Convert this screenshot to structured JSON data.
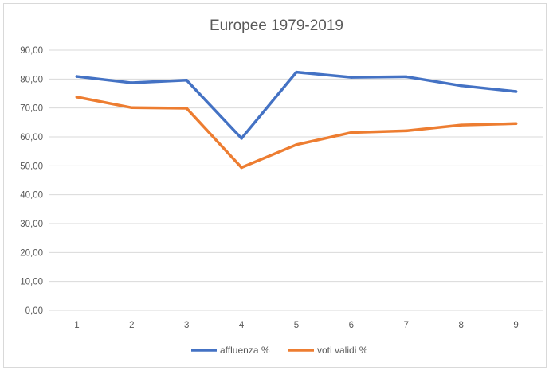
{
  "chart_data": {
    "type": "line",
    "title": "Europee 1979-2019",
    "xlabel": "",
    "ylabel": "",
    "x": [
      1,
      2,
      3,
      4,
      5,
      6,
      7,
      8,
      9
    ],
    "x_tick_labels": [
      "1",
      "2",
      "3",
      "4",
      "5",
      "6",
      "7",
      "8",
      "9"
    ],
    "ylim": [
      0,
      90
    ],
    "y_tick_values": [
      0,
      10,
      20,
      30,
      40,
      50,
      60,
      70,
      80,
      90
    ],
    "y_tick_labels": [
      "0,00",
      "10,00",
      "20,00",
      "30,00",
      "40,00",
      "50,00",
      "60,00",
      "70,00",
      "80,00",
      "90,00"
    ],
    "grid": true,
    "legend_position": "bottom",
    "series": [
      {
        "name": "affluenza %",
        "color": "#4472c4",
        "values": [
          80.9,
          78.7,
          79.6,
          59.5,
          82.4,
          80.6,
          80.8,
          77.7,
          75.7
        ]
      },
      {
        "name": "voti validi %",
        "color": "#ed7d31",
        "values": [
          73.8,
          70.1,
          69.9,
          49.4,
          57.3,
          61.5,
          62.1,
          64.1,
          64.6
        ]
      }
    ]
  }
}
